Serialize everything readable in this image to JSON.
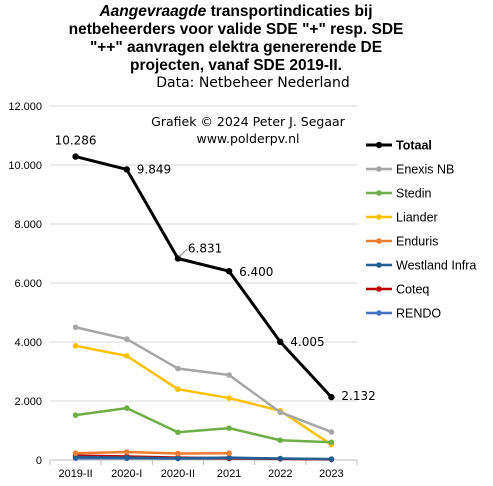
{
  "chart_data": {
    "type": "line",
    "title": {
      "italic_part": "Aangevraagde",
      "line1_rest": " transportindicaties  bij",
      "line2": "netbeheerders voor valide SDE \"+\" resp. SDE",
      "line3": "\"++\" aanvragen elektra genererende DE",
      "line4": "projecten, vanaf SDE 2019-II."
    },
    "subtitle": "Data: Netbeheer Nederland",
    "credit": [
      "Grafiek  © 2024  Peter J. Segaar",
      "www.polderpv.nl"
    ],
    "categories": [
      "2019-II",
      "2020-I",
      "2020-II",
      "2021",
      "2022",
      "2023"
    ],
    "ylim": [
      0,
      12000
    ],
    "yticks": [
      0,
      2000,
      4000,
      6000,
      8000,
      10000,
      12000
    ],
    "ytick_labels": [
      "0",
      "2.000",
      "4.000",
      "6.000",
      "8.000",
      "10.000",
      "12.000"
    ],
    "grid": "horizontal",
    "legend_position": "right",
    "series": [
      {
        "name": "Totaal",
        "color": "#000000",
        "values": [
          10286,
          9849,
          6831,
          6400,
          4005,
          2132
        ],
        "bold": true
      },
      {
        "name": "Enexis NB",
        "color": "#a6a6a6",
        "values": [
          4500,
          4100,
          3100,
          2880,
          1620,
          950
        ]
      },
      {
        "name": "Stedin",
        "color": "#70ad47",
        "values": [
          1520,
          1760,
          940,
          1080,
          670,
          600
        ]
      },
      {
        "name": "Liander",
        "color": "#ffc000",
        "values": [
          3870,
          3530,
          2400,
          2100,
          1670,
          520
        ]
      },
      {
        "name": "Enduris",
        "color": "#ed7d31",
        "values": [
          230,
          270,
          220,
          230,
          null,
          null
        ]
      },
      {
        "name": "Westland Infra",
        "color": "#255e91",
        "values": [
          100,
          80,
          60,
          80,
          50,
          30
        ]
      },
      {
        "name": "Coteq",
        "color": "#c00000",
        "values": [
          150,
          120,
          80,
          60,
          40,
          20
        ]
      },
      {
        "name": "RENDO",
        "color": "#4472c4",
        "values": [
          60,
          60,
          50,
          50,
          40,
          30
        ]
      }
    ],
    "data_labels": [
      {
        "series": "Totaal",
        "index": 0,
        "text": "10.286"
      },
      {
        "series": "Totaal",
        "index": 1,
        "text": "9.849"
      },
      {
        "series": "Totaal",
        "index": 2,
        "text": "6.831"
      },
      {
        "series": "Totaal",
        "index": 3,
        "text": "6.400"
      },
      {
        "series": "Totaal",
        "index": 4,
        "text": "4.005"
      },
      {
        "series": "Totaal",
        "index": 5,
        "text": "2.132"
      }
    ]
  }
}
